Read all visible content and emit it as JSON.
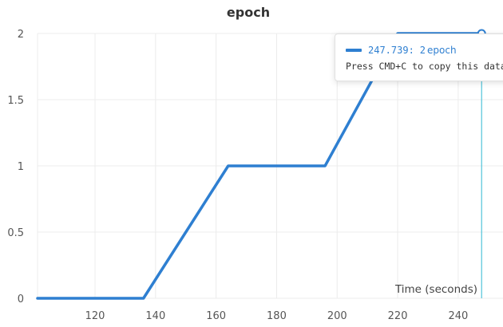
{
  "chart_data": {
    "type": "line",
    "title": "epoch",
    "xlabel": "Time (seconds)",
    "ylabel": "",
    "xlim": [
      101,
      249
    ],
    "ylim": [
      0,
      2
    ],
    "xticks": [
      120,
      140,
      160,
      180,
      200,
      220,
      240
    ],
    "yticks": [
      0,
      0.5,
      1,
      1.5,
      2
    ],
    "ytick_labels": [
      "0",
      "0.5",
      "1",
      "1.5",
      "2"
    ],
    "grid": true,
    "series": [
      {
        "name": "epoch",
        "color": "#2e7fd1",
        "x": [
          101,
          136,
          164,
          196,
          220,
          247.739
        ],
        "y": [
          0,
          0,
          1,
          1,
          2,
          2
        ]
      }
    ],
    "hover": {
      "x": 247.739,
      "x_label": "247.739:",
      "value_label": "2",
      "series_label": "epoch",
      "marker_color": "#2e7fd1",
      "line_color": "#4fc3d9",
      "copy_hint": "Press CMD+C to copy this data"
    }
  }
}
